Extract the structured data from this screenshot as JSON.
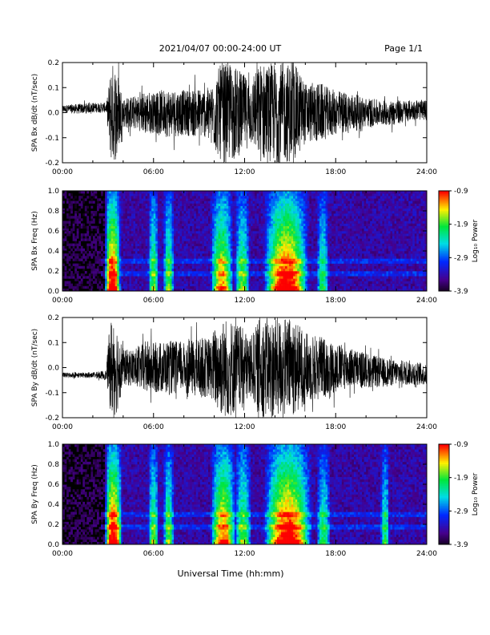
{
  "header": {
    "title": "2021/04/07  00:00-24:00 UT",
    "page": "Page 1/1"
  },
  "xlabel": "Universal Time (hh:mm)",
  "chart_data": [
    {
      "type": "line",
      "title": "",
      "ylabel": "SPA Bx dB/dt (nT/sec)",
      "xlim": [
        "00:00",
        "24:00"
      ],
      "ylim": [
        -0.2,
        0.2
      ],
      "x_ticks": [
        "00:00",
        "06:00",
        "12:00",
        "18:00",
        "24:00"
      ],
      "y_ticks": [
        "-0.2",
        "-0.1",
        "0.0",
        "0.1",
        "0.2"
      ],
      "y_tick_values": [
        -0.2,
        -0.1,
        0.0,
        0.1,
        0.2
      ],
      "series": [
        {
          "hours": [
            0,
            1,
            2,
            2.9,
            3.0,
            3.2,
            3.4,
            3.6,
            4,
            5,
            5.5,
            6,
            7,
            8,
            9,
            9.8,
            10,
            10.5,
            11,
            11.5,
            12,
            12.5,
            13,
            13.5,
            14,
            14.5,
            15,
            15.5,
            16,
            17,
            17.5,
            18,
            19,
            20,
            21,
            22,
            23,
            24
          ],
          "amplitude": [
            0.015,
            0.02,
            0.02,
            0.02,
            0.08,
            0.2,
            0.2,
            0.18,
            0.06,
            0.07,
            0.09,
            0.08,
            0.1,
            0.09,
            0.1,
            0.1,
            0.15,
            0.2,
            0.2,
            0.18,
            0.15,
            0.13,
            0.2,
            0.2,
            0.2,
            0.2,
            0.2,
            0.18,
            0.12,
            0.12,
            0.1,
            0.09,
            0.08,
            0.06,
            0.05,
            0.05,
            0.04,
            0.04
          ],
          "offset": [
            0.015,
            0.015,
            0.02,
            0.02,
            0.0,
            0.0,
            0.0,
            0.0,
            0.0,
            0.0,
            0.0,
            0.0,
            0.0,
            0.0,
            0.0,
            0.0,
            0.0,
            0.0,
            0.0,
            0.0,
            0.0,
            0.0,
            0.0,
            0.0,
            0.0,
            0.0,
            0.0,
            0.0,
            0.0,
            0.0,
            0.0,
            0.0,
            0.0,
            0.0,
            0.0,
            0.0,
            0.01,
            0.01
          ]
        }
      ]
    },
    {
      "type": "heatmap",
      "title": "",
      "ylabel": "SPA Bx Freq (Hz)",
      "xlim": [
        "00:00",
        "24:00"
      ],
      "ylim": [
        0.0,
        1.0
      ],
      "x_ticks": [
        "00:00",
        "06:00",
        "12:00",
        "18:00",
        "24:00"
      ],
      "y_ticks": [
        "0.0",
        "0.2",
        "0.4",
        "0.6",
        "0.8",
        "1.0"
      ],
      "y_tick_values": [
        0.0,
        0.2,
        0.4,
        0.6,
        0.8,
        1.0
      ],
      "colorbar": {
        "label": "Log₁₀ Power",
        "min": -3.9,
        "max": -0.9,
        "ticks": [
          "-0.9",
          "-1.9",
          "-2.9",
          "-3.9"
        ],
        "tick_values": [
          -0.9,
          -1.9,
          -2.9,
          -3.9
        ]
      },
      "bursts": [
        {
          "start": 3.0,
          "end": 3.6,
          "level": 1.0
        },
        {
          "start": 5.9,
          "end": 6.1,
          "level": 0.6
        },
        {
          "start": 6.9,
          "end": 7.1,
          "level": 0.6
        },
        {
          "start": 10.0,
          "end": 11.0,
          "level": 0.8
        },
        {
          "start": 11.6,
          "end": 12.1,
          "level": 0.6
        },
        {
          "start": 13.5,
          "end": 16.0,
          "level": 1.0
        },
        {
          "start": 17.0,
          "end": 17.3,
          "level": 0.5
        }
      ],
      "bands_hz": [
        0.17,
        0.3
      ]
    },
    {
      "type": "line",
      "title": "",
      "ylabel": "SPA By dB/dt (nT/sec)",
      "xlim": [
        "00:00",
        "24:00"
      ],
      "ylim": [
        -0.2,
        0.2
      ],
      "x_ticks": [
        "00:00",
        "06:00",
        "12:00",
        "18:00",
        "24:00"
      ],
      "y_ticks": [
        "-0.2",
        "-0.1",
        "0.0",
        "0.1",
        "0.2"
      ],
      "y_tick_values": [
        -0.2,
        -0.1,
        0.0,
        0.1,
        0.2
      ],
      "series": [
        {
          "hours": [
            0,
            1,
            2,
            2.9,
            3.0,
            3.2,
            3.4,
            3.6,
            4,
            5,
            5.5,
            6,
            7,
            8,
            9,
            9.8,
            10,
            10.5,
            11,
            11.5,
            12,
            12.5,
            13,
            13.5,
            14,
            14.5,
            15,
            15.5,
            16,
            17,
            17.5,
            18,
            19,
            20,
            21,
            22,
            23,
            24
          ],
          "amplitude": [
            0.01,
            0.01,
            0.01,
            0.02,
            0.1,
            0.2,
            0.2,
            0.18,
            0.07,
            0.08,
            0.11,
            0.1,
            0.11,
            0.1,
            0.12,
            0.12,
            0.16,
            0.2,
            0.2,
            0.18,
            0.15,
            0.13,
            0.2,
            0.2,
            0.2,
            0.2,
            0.2,
            0.18,
            0.14,
            0.13,
            0.11,
            0.1,
            0.08,
            0.07,
            0.06,
            0.05,
            0.05,
            0.04
          ],
          "offset": [
            -0.03,
            -0.03,
            -0.03,
            -0.03,
            0.0,
            0.0,
            0.0,
            0.0,
            0.0,
            0.0,
            0.0,
            0.0,
            0.0,
            0.0,
            0.0,
            0.0,
            0.0,
            0.0,
            0.0,
            0.0,
            0.0,
            0.0,
            0.0,
            0.0,
            0.0,
            0.0,
            0.0,
            0.0,
            0.0,
            0.0,
            0.0,
            0.0,
            0.0,
            -0.01,
            -0.02,
            -0.02,
            -0.02,
            -0.03
          ]
        }
      ]
    },
    {
      "type": "heatmap",
      "title": "",
      "ylabel": "SPA By Freq (Hz)",
      "xlim": [
        "00:00",
        "24:00"
      ],
      "ylim": [
        0.0,
        1.0
      ],
      "x_ticks": [
        "00:00",
        "06:00",
        "12:00",
        "18:00",
        "24:00"
      ],
      "y_ticks": [
        "0.0",
        "0.2",
        "0.4",
        "0.6",
        "0.8",
        "1.0"
      ],
      "y_tick_values": [
        0.0,
        0.2,
        0.4,
        0.6,
        0.8,
        1.0
      ],
      "colorbar": {
        "label": "Log₁₀ Power",
        "min": -3.9,
        "max": -0.9,
        "ticks": [
          "-0.9",
          "-1.9",
          "-2.9",
          "-3.9"
        ],
        "tick_values": [
          -0.9,
          -1.9,
          -2.9,
          -3.9
        ]
      },
      "bursts": [
        {
          "start": 3.0,
          "end": 3.7,
          "level": 1.0
        },
        {
          "start": 5.9,
          "end": 6.1,
          "level": 0.6
        },
        {
          "start": 6.9,
          "end": 7.1,
          "level": 0.6
        },
        {
          "start": 10.0,
          "end": 11.2,
          "level": 0.85
        },
        {
          "start": 11.6,
          "end": 12.2,
          "level": 0.6
        },
        {
          "start": 13.5,
          "end": 16.2,
          "level": 1.0
        },
        {
          "start": 17.0,
          "end": 17.4,
          "level": 0.5
        },
        {
          "start": 21.2,
          "end": 21.3,
          "level": 0.5
        }
      ],
      "bands_hz": [
        0.17,
        0.3
      ]
    }
  ]
}
